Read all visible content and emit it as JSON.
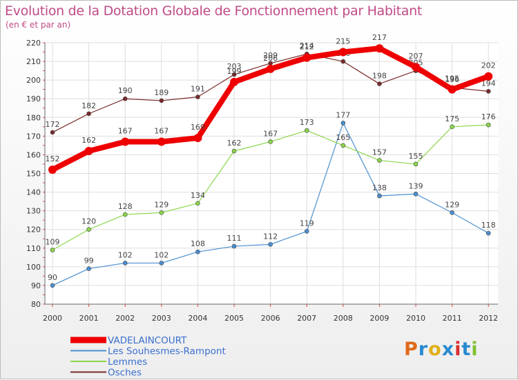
{
  "chart_data": {
    "type": "line",
    "title": "Evolution de la Dotation Globale de Fonctionnement par Habitant",
    "subtitle": "(en € et par an)",
    "xlabel": "",
    "ylabel": "",
    "ylim": [
      80,
      220
    ],
    "yticks": [
      80,
      90,
      100,
      110,
      120,
      130,
      140,
      150,
      160,
      170,
      180,
      190,
      200,
      210,
      220
    ],
    "grid": true,
    "legend_position": "bottom-left",
    "categories": [
      "2000",
      "2001",
      "2002",
      "2003",
      "2004",
      "2005",
      "2006",
      "2007",
      "2008",
      "2009",
      "2010",
      "2011",
      "2012"
    ],
    "series": [
      {
        "name": "Osches",
        "color": "#7a2a2a",
        "values": [
          172,
          182,
          190,
          189,
          191,
          203,
          209,
          214,
          210,
          198,
          205,
          196,
          194
        ]
      },
      {
        "name": "Les Souhesmes-Rampont",
        "color": "#4a8fd0",
        "values": [
          90,
          99,
          102,
          102,
          108,
          111,
          112,
          119,
          177,
          138,
          139,
          129,
          118
        ]
      },
      {
        "name": "Lemmes",
        "color": "#8ad64a",
        "values": [
          109,
          120,
          128,
          129,
          134,
          162,
          167,
          173,
          165,
          157,
          155,
          175,
          176
        ]
      },
      {
        "name": "VADELAINCOURT",
        "color": "#ee0000",
        "values": [
          152,
          162,
          167,
          167,
          169,
          199,
          206,
          212,
          215,
          217,
          207,
          195,
          202
        ]
      }
    ],
    "legend": [
      "VADELAINCOURT",
      "Les Souhesmes-Rampont",
      "Lemmes",
      "Osches"
    ]
  },
  "brand": {
    "letters": [
      "P",
      "r",
      "o",
      "x",
      "i",
      "t",
      "i"
    ],
    "colors": [
      "#e06a1a",
      "#2a8ad0",
      "#e0b018",
      "#2a8ad0",
      "#d83030",
      "#2a8ad0",
      "#80c030"
    ]
  }
}
